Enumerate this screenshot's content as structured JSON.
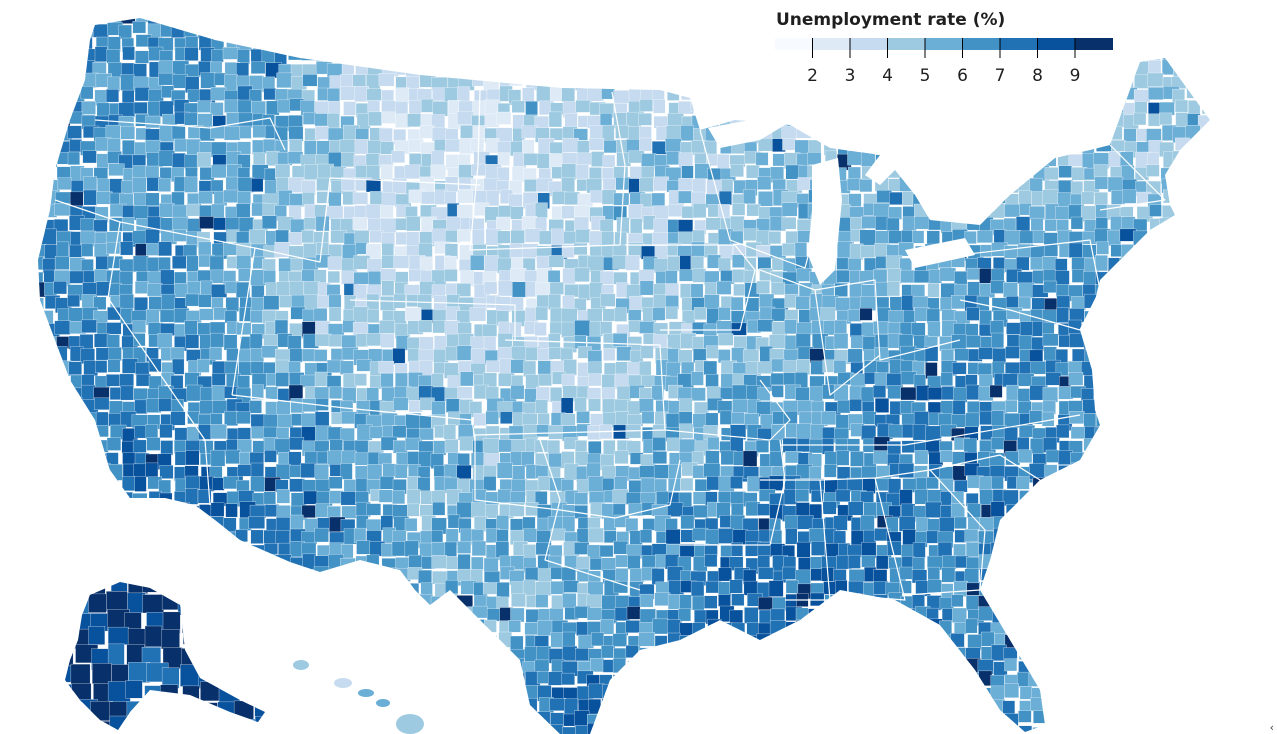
{
  "legend": {
    "title": "Unemployment rate (%)",
    "ticks": [
      "2",
      "3",
      "4",
      "5",
      "6",
      "7",
      "8",
      "9"
    ],
    "bins": [
      {
        "color": "#f7fbff"
      },
      {
        "color": "#deebf7"
      },
      {
        "color": "#c6dbef"
      },
      {
        "color": "#9ecae1"
      },
      {
        "color": "#6baed6"
      },
      {
        "color": "#4292c6"
      },
      {
        "color": "#2171b5"
      },
      {
        "color": "#08519c"
      },
      {
        "color": "#08306b"
      }
    ]
  },
  "map": {
    "projection": "albers-usa",
    "subject": "county unemployment rates, United States",
    "regions": [
      "contiguous-us",
      "alaska",
      "hawaii"
    ]
  },
  "corner": {
    "glyph": "‹",
    "icon": "chevron-left-icon"
  }
}
